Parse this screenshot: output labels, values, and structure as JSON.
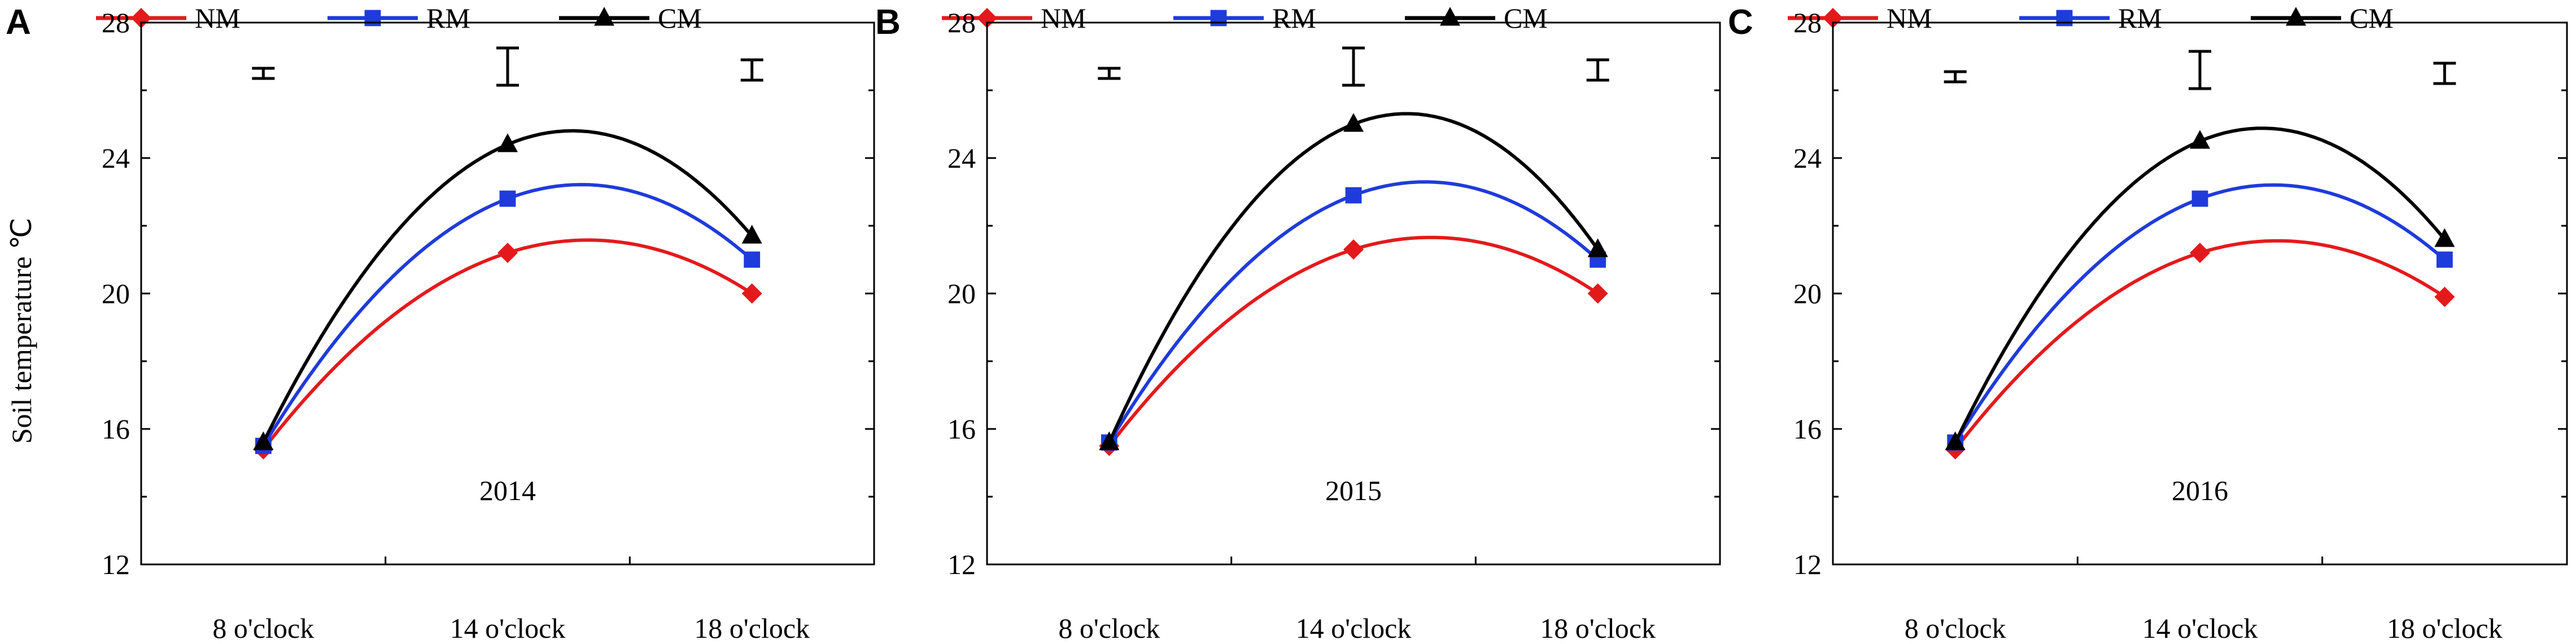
{
  "figure": {
    "ylabel": "Soil temperature ℃",
    "yticks": [
      "12",
      "16",
      "20",
      "24",
      "28"
    ],
    "xticks": [
      "8 o'clock",
      "14 o'clock",
      "18 o'clock"
    ],
    "legend": [
      {
        "name": "NM",
        "color": "#e31a1c",
        "marker": "diamond"
      },
      {
        "name": "RM",
        "color": "#1f3bdb",
        "marker": "square"
      },
      {
        "name": "CM",
        "color": "#000000",
        "marker": "triangle"
      }
    ]
  },
  "chart_data": [
    {
      "type": "line",
      "panel": "A",
      "annotation": "2014",
      "categories": [
        "8 o'clock",
        "14 o'clock",
        "18 o'clock"
      ],
      "ylabel": "Soil temperature ℃",
      "ylim": [
        12,
        28
      ],
      "series": [
        {
          "name": "NM",
          "values": [
            15.4,
            21.2,
            20.0
          ]
        },
        {
          "name": "RM",
          "values": [
            15.5,
            22.8,
            21.0
          ]
        },
        {
          "name": "CM",
          "values": [
            15.6,
            24.4,
            21.7
          ]
        }
      ],
      "error_bars": [
        {
          "center": 26.5,
          "half_width": 0.15
        },
        {
          "center": 26.7,
          "half_width": 0.55
        },
        {
          "center": 26.6,
          "half_width": 0.3
        }
      ],
      "legend_position": "top"
    },
    {
      "type": "line",
      "panel": "B",
      "annotation": "2015",
      "categories": [
        "8 o'clock",
        "14 o'clock",
        "18 o'clock"
      ],
      "ylabel": "Soil temperature ℃",
      "ylim": [
        12,
        28
      ],
      "series": [
        {
          "name": "NM",
          "values": [
            15.5,
            21.3,
            20.0
          ]
        },
        {
          "name": "RM",
          "values": [
            15.6,
            22.9,
            21.0
          ]
        },
        {
          "name": "CM",
          "values": [
            15.6,
            25.0,
            21.3
          ]
        }
      ],
      "error_bars": [
        {
          "center": 26.5,
          "half_width": 0.15
        },
        {
          "center": 26.7,
          "half_width": 0.55
        },
        {
          "center": 26.6,
          "half_width": 0.3
        }
      ],
      "legend_position": "top"
    },
    {
      "type": "line",
      "panel": "C",
      "annotation": "2016",
      "categories": [
        "8 o'clock",
        "14 o'clock",
        "18 o'clock"
      ],
      "ylabel": "Soil temperature ℃",
      "ylim": [
        12,
        28
      ],
      "series": [
        {
          "name": "NM",
          "values": [
            15.4,
            21.2,
            19.9
          ]
        },
        {
          "name": "RM",
          "values": [
            15.6,
            22.8,
            21.0
          ]
        },
        {
          "name": "CM",
          "values": [
            15.6,
            24.5,
            21.6
          ]
        }
      ],
      "error_bars": [
        {
          "center": 26.4,
          "half_width": 0.15
        },
        {
          "center": 26.6,
          "half_width": 0.55
        },
        {
          "center": 26.5,
          "half_width": 0.3
        }
      ],
      "legend_position": "top"
    }
  ]
}
